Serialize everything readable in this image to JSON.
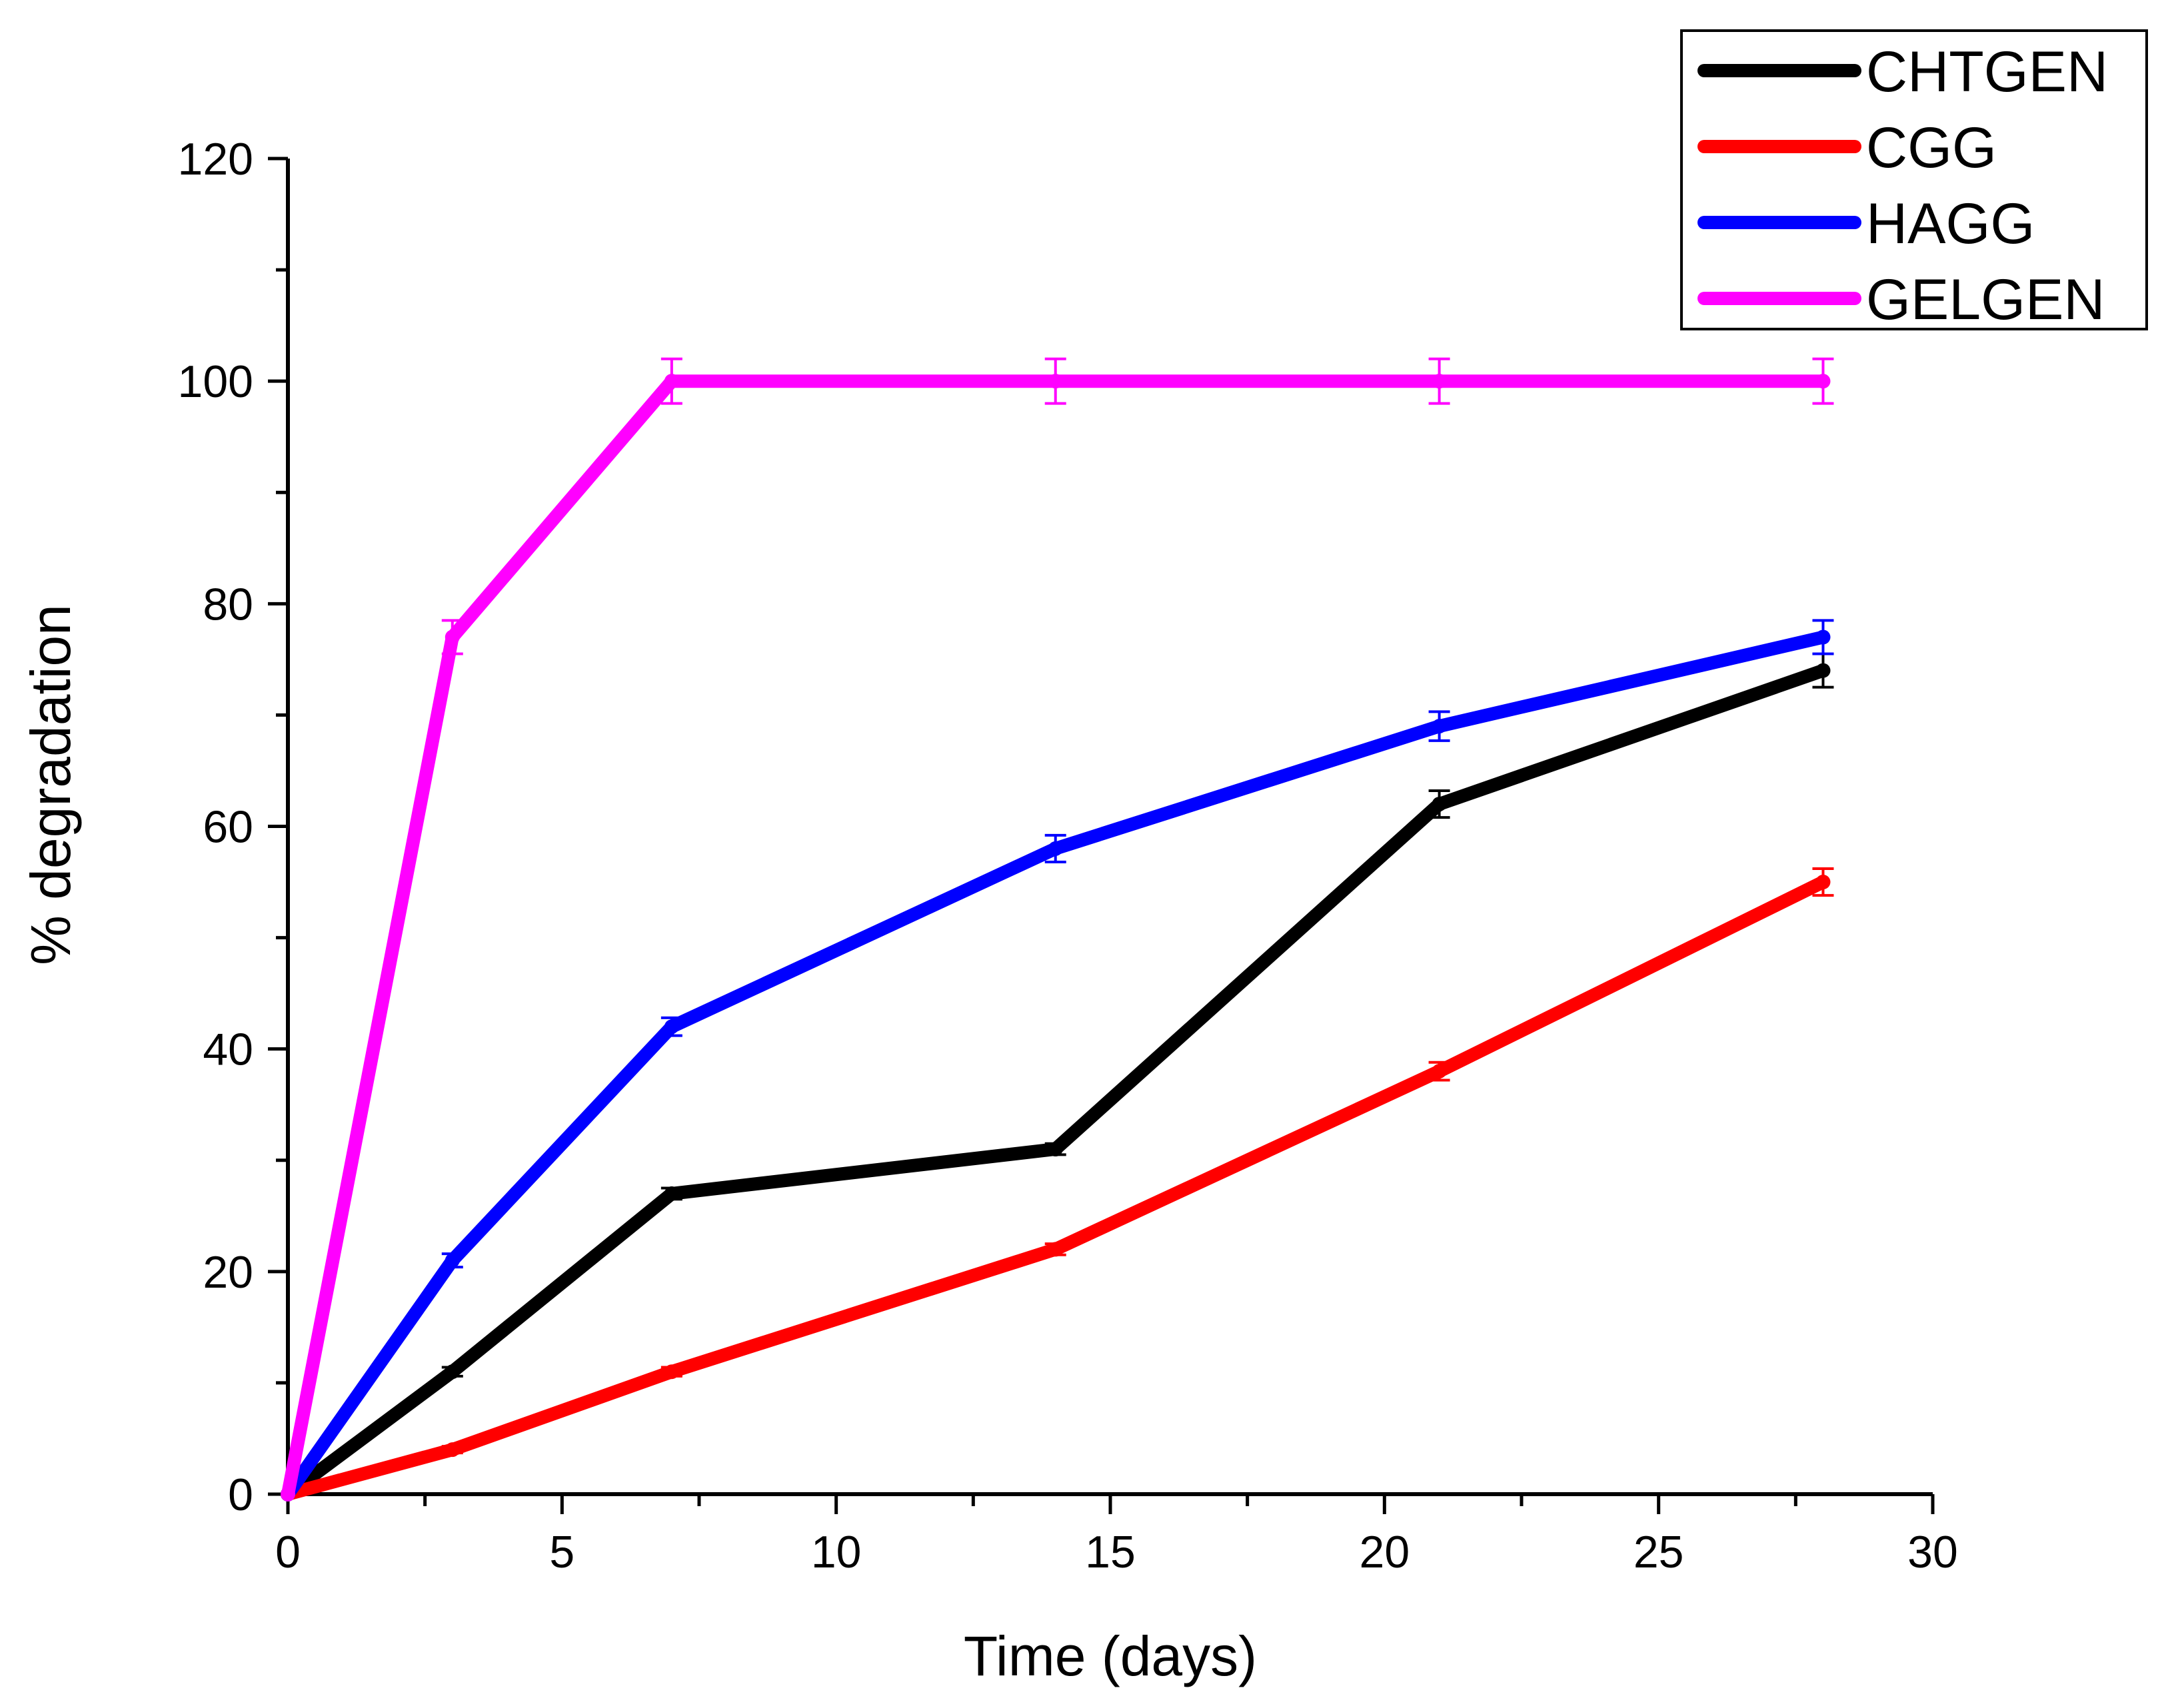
{
  "chart_data": {
    "type": "line",
    "xlabel": "Time (days)",
    "ylabel": "% degradation",
    "xlim": [
      0,
      30
    ],
    "ylim": [
      0,
      120
    ],
    "xticks": [
      0,
      5,
      10,
      15,
      20,
      25,
      30
    ],
    "yticks": [
      0,
      20,
      40,
      60,
      80,
      100,
      120
    ],
    "x_tick_labels": [
      "0",
      "5",
      "10",
      "15",
      "20",
      "25",
      "30"
    ],
    "y_tick_labels": [
      "0",
      "20",
      "40",
      "60",
      "80",
      "100",
      "120"
    ],
    "grid": false,
    "legend_position": "top-right",
    "x": [
      0,
      3,
      7,
      14,
      21,
      28
    ],
    "series": [
      {
        "name": "CHTGEN",
        "color": "#000000",
        "values": [
          0,
          11,
          27,
          31,
          62,
          74
        ],
        "errors": [
          0,
          0.4,
          0.5,
          0.5,
          1.2,
          1.5
        ]
      },
      {
        "name": "CGG",
        "color": "#ff0000",
        "values": [
          0,
          4,
          11,
          22,
          38,
          55
        ],
        "errors": [
          0,
          0.3,
          0.4,
          0.5,
          0.8,
          1.2
        ]
      },
      {
        "name": "HAGG",
        "color": "#0000ff",
        "values": [
          0,
          21,
          42,
          58,
          69,
          77
        ],
        "errors": [
          0,
          0.6,
          0.8,
          1.2,
          1.3,
          1.5
        ]
      },
      {
        "name": "GELGEN",
        "color": "#ff00ff",
        "values": [
          0,
          77,
          100,
          100,
          100,
          100
        ],
        "errors": [
          0,
          1.5,
          2.0,
          2.0,
          2.0,
          2.0
        ]
      }
    ]
  }
}
